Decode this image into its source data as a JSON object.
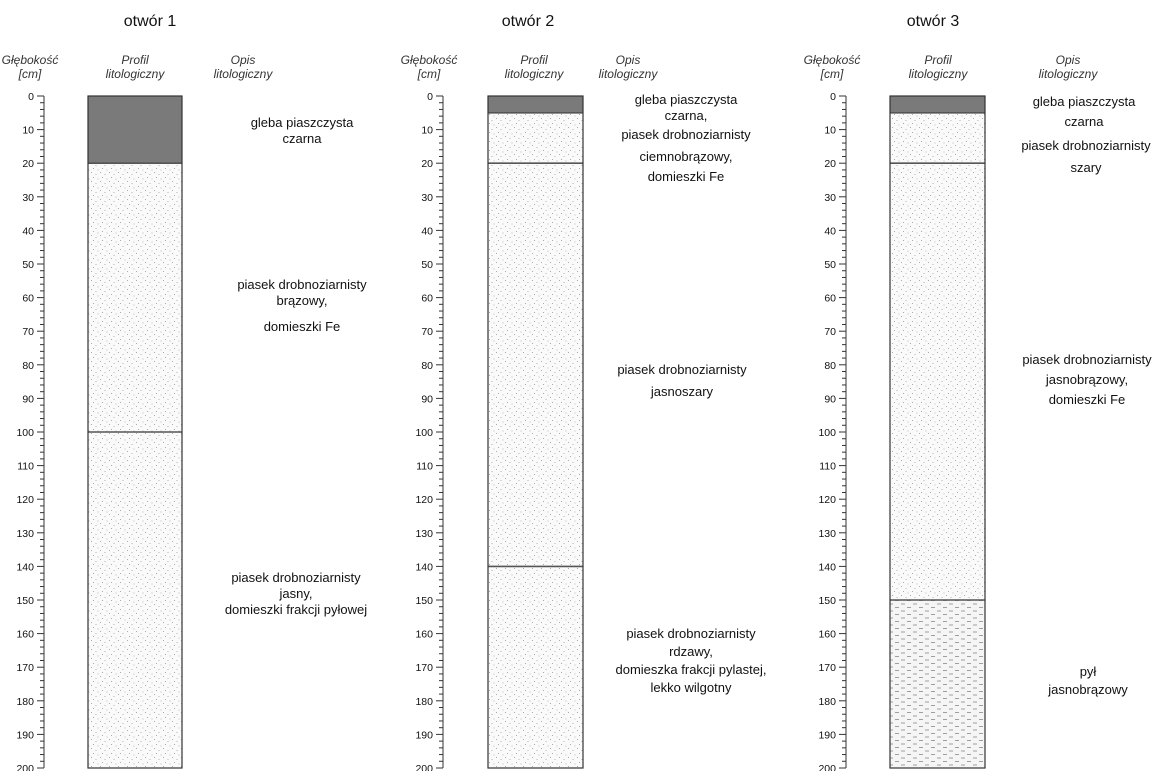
{
  "header_labels": {
    "depth_line1": "Głębokość",
    "depth_line2": "[cm]",
    "profile_line1": "Profil",
    "profile_line2": "litologiczny",
    "desc_line1": "Opis",
    "desc_line2": "litologiczny"
  },
  "depth_axis": {
    "min": 0,
    "max": 200,
    "label_step": 10,
    "minor_step": 2
  },
  "colors": {
    "soil": "#7a7a7a",
    "sand": "#fafafa",
    "sand_dots": "#9a9a9a",
    "silt": "#f5f5f5",
    "silt_dashes": "#8a8a8a"
  },
  "holes": [
    {
      "title": "otwór 1",
      "layers": [
        {
          "from": 0,
          "to": 20,
          "pattern": "soil"
        },
        {
          "from": 20,
          "to": 100,
          "pattern": "sand"
        },
        {
          "from": 100,
          "to": 200,
          "pattern": "sand"
        }
      ],
      "descriptions": [
        {
          "lines": [
            "gleba piaszczysta",
            "czarna"
          ]
        },
        {
          "lines": [
            "piasek drobnoziarnisty",
            "brązowy,",
            "domieszki Fe"
          ]
        },
        {
          "lines": [
            "piasek drobnoziarnisty",
            "jasny,",
            "domieszki frakcji pyłowej"
          ]
        }
      ]
    },
    {
      "title": "otwór 2",
      "layers": [
        {
          "from": 0,
          "to": 5,
          "pattern": "soil"
        },
        {
          "from": 5,
          "to": 20,
          "pattern": "sand"
        },
        {
          "from": 20,
          "to": 140,
          "pattern": "sand"
        },
        {
          "from": 140,
          "to": 200,
          "pattern": "sand"
        }
      ],
      "descriptions": [
        {
          "lines": [
            "gleba piaszczysta",
            "czarna,",
            "piasek drobnoziarnisty",
            "ciemnobrązowy,",
            "domieszki Fe"
          ]
        },
        {
          "lines": [
            "piasek drobnoziarnisty",
            "jasnoszary"
          ]
        },
        {
          "lines": [
            "piasek drobnoziarnisty",
            "rdzawy,",
            "domieszka frakcji pylastej,",
            "lekko wilgotny"
          ]
        }
      ]
    },
    {
      "title": "otwór 3",
      "layers": [
        {
          "from": 0,
          "to": 5,
          "pattern": "soil"
        },
        {
          "from": 5,
          "to": 20,
          "pattern": "sand"
        },
        {
          "from": 20,
          "to": 150,
          "pattern": "sand"
        },
        {
          "from": 150,
          "to": 200,
          "pattern": "silt"
        }
      ],
      "descriptions": [
        {
          "lines": [
            "gleba piaszczysta",
            "czarna"
          ]
        },
        {
          "lines": [
            "piasek drobnoziarnisty",
            "szary"
          ]
        },
        {
          "lines": [
            "piasek drobnoziarnisty",
            "jasnobrązowy,",
            "domieszki Fe"
          ]
        },
        {
          "lines": [
            "pył",
            "jasnobrązowy"
          ]
        }
      ]
    }
  ]
}
